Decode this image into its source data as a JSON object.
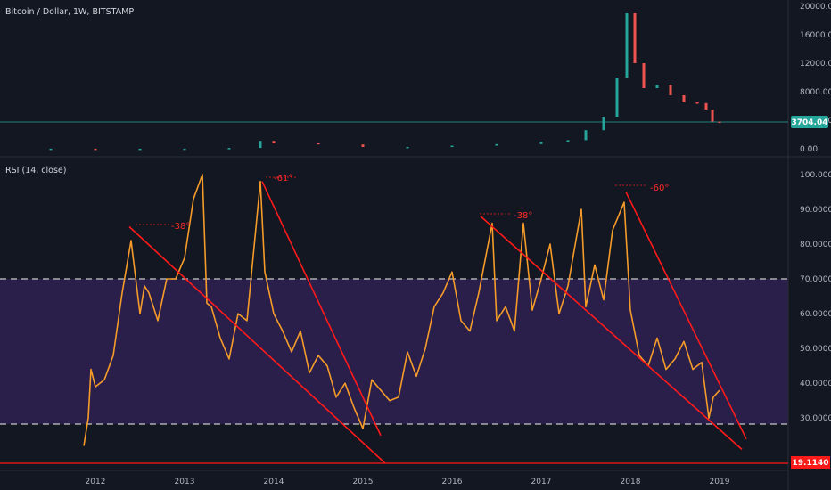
{
  "header": {
    "symbol_title": "Bitcoin / Dollar, 1W, BITSTAMP",
    "rsi_title": "RSI (14, close)"
  },
  "colors": {
    "background": "#131722",
    "rsi_line": "#f59b2a",
    "trendline": "#ff1a1a",
    "up_candle": "#26a69a",
    "down_candle": "#ef5350",
    "overbought_oversold_band": "#2a1f4a",
    "price_marker": "#26a69a",
    "level_marker": "#ff1a1a"
  },
  "chart_data": [
    {
      "type": "line",
      "name": "price",
      "x": [
        2011.5,
        2012.0,
        2012.5,
        2013.0,
        2013.5,
        2013.85,
        2014.0,
        2014.5,
        2015.0,
        2015.5,
        2016.0,
        2016.5,
        2017.0,
        2017.3,
        2017.5,
        2017.7,
        2017.85,
        2017.96,
        2018.05,
        2018.15,
        2018.3,
        2018.45,
        2018.6,
        2018.75,
        2018.85,
        2018.92,
        2019.0
      ],
      "y": [
        10,
        5,
        8,
        13,
        110,
        1100,
        800,
        600,
        250,
        250,
        430,
        650,
        1000,
        1200,
        2600,
        4500,
        10000,
        19000,
        12000,
        8500,
        9000,
        7500,
        6500,
        6400,
        5500,
        3800,
        3704
      ],
      "ylim": [
        0,
        20000
      ],
      "y_ticks": [
        "20000.00",
        "16000.00",
        "12000.00",
        "8000.00",
        "4000.00",
        "0.00"
      ],
      "last_value": "3704.04",
      "grid": false
    },
    {
      "type": "line",
      "name": "RSI",
      "x": [
        2011.87,
        2011.92,
        2011.95,
        2012.0,
        2012.1,
        2012.2,
        2012.3,
        2012.4,
        2012.5,
        2012.55,
        2012.6,
        2012.7,
        2012.8,
        2012.9,
        2013.0,
        2013.1,
        2013.2,
        2013.25,
        2013.3,
        2013.4,
        2013.5,
        2013.6,
        2013.7,
        2013.85,
        2013.9,
        2014.0,
        2014.1,
        2014.2,
        2014.3,
        2014.4,
        2014.5,
        2014.6,
        2014.7,
        2014.8,
        2014.9,
        2015.0,
        2015.1,
        2015.2,
        2015.3,
        2015.4,
        2015.5,
        2015.6,
        2015.7,
        2015.8,
        2015.9,
        2016.0,
        2016.1,
        2016.2,
        2016.3,
        2016.45,
        2016.5,
        2016.6,
        2016.7,
        2016.8,
        2016.9,
        2017.0,
        2017.1,
        2017.2,
        2017.3,
        2017.45,
        2017.5,
        2017.6,
        2017.7,
        2017.8,
        2017.93,
        2018.0,
        2018.1,
        2018.2,
        2018.3,
        2018.4,
        2018.5,
        2018.6,
        2018.7,
        2018.8,
        2018.88,
        2018.93,
        2019.0
      ],
      "y": [
        22,
        30,
        44,
        39,
        41,
        48,
        66,
        81,
        60,
        68,
        66,
        58,
        70,
        70,
        76,
        93,
        100,
        63,
        62,
        53,
        47,
        60,
        58,
        98,
        72,
        60,
        55,
        49,
        55,
        43,
        48,
        45,
        36,
        40,
        33,
        27,
        41,
        38,
        35,
        36,
        49,
        42,
        50,
        62,
        66,
        72,
        58,
        55,
        66,
        86,
        58,
        62,
        55,
        86,
        61,
        70,
        80,
        60,
        68,
        90,
        62,
        74,
        64,
        84,
        92,
        61,
        48,
        45,
        53,
        44,
        47,
        52,
        44,
        46,
        30,
        36,
        38
      ],
      "ylim": [
        17,
        101
      ],
      "y_ticks": [
        "100.0000",
        "90.0000",
        "80.0000",
        "70.0000",
        "60.0000",
        "50.0000",
        "40.0000",
        "30.0000"
      ],
      "reference_levels": [
        70,
        30
      ],
      "support_level": "19.1140",
      "x_tick_labels": [
        "2012",
        "2013",
        "2014",
        "2015",
        "2016",
        "2017",
        "2018",
        "2019"
      ],
      "annotations": [
        "-38°",
        "-61°",
        "-38°",
        "-60°"
      ],
      "trendlines": [
        {
          "from": [
            2012.38,
            85
          ],
          "to": [
            2015.25,
            17
          ]
        },
        {
          "from": [
            2013.87,
            98
          ],
          "to": [
            2015.2,
            25
          ]
        },
        {
          "from": [
            2016.32,
            88
          ],
          "to": [
            2019.25,
            21
          ]
        },
        {
          "from": [
            2017.95,
            95
          ],
          "to": [
            2019.3,
            24
          ]
        }
      ]
    }
  ]
}
